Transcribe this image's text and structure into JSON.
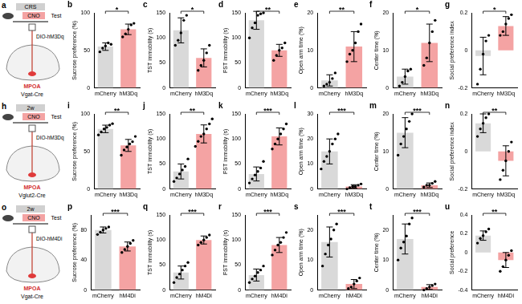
{
  "panels": [
    {
      "label": "a",
      "timeline": [
        "CRS",
        "CNO",
        "Test"
      ],
      "virus": "DIO-hM3Dq",
      "region": "MPOA",
      "line": "Vgat-Cre"
    },
    {
      "label": "h",
      "timeline": [
        "2w",
        "CNO",
        "Test"
      ],
      "virus": "DIO-hM3Dq",
      "region": "MPOA",
      "line": "Vglut2-Cre"
    },
    {
      "label": "o",
      "timeline": [
        "2w",
        "CNO",
        "Test"
      ],
      "virus": "DIO-hM4Di",
      "region": "MPOA",
      "line": "Vgat-Cre"
    }
  ],
  "chart_data": [
    {
      "panel": "b",
      "type": "bar",
      "categories": [
        "mCherry",
        "hM3Dq"
      ],
      "y_label": "Sucrose preference (%)",
      "values": [
        55,
        78
      ],
      "errors": [
        5,
        7
      ],
      "points": [
        [
          48,
          53,
          56,
          60,
          58
        ],
        [
          68,
          72,
          78,
          84,
          86
        ]
      ],
      "colors": [
        "#d9d9d9",
        "#f4a3a3"
      ],
      "ylim": [
        0,
        100
      ],
      "yticks": [
        0,
        50,
        100
      ],
      "significance": "*",
      "grid": false
    },
    {
      "panel": "c",
      "type": "bar",
      "categories": [
        "mCherry",
        "hM3Dq"
      ],
      "y_label": "TST immobility (s)",
      "values": [
        115,
        60
      ],
      "errors": [
        25,
        18
      ],
      "points": [
        [
          85,
          95,
          110,
          135,
          145
        ],
        [
          35,
          45,
          55,
          70,
          85
        ]
      ],
      "colors": [
        "#d9d9d9",
        "#f4a3a3"
      ],
      "ylim": [
        0,
        150
      ],
      "yticks": [
        0,
        50,
        100,
        150
      ],
      "significance": "*",
      "grid": false
    },
    {
      "panel": "d",
      "type": "bar",
      "categories": [
        "mCherry",
        "hM3Dq"
      ],
      "y_label": "FST immobility (s)",
      "values": [
        135,
        75
      ],
      "errors": [
        18,
        12
      ],
      "points": [
        [
          100,
          120,
          130,
          145,
          148,
          150
        ],
        [
          55,
          65,
          75,
          80,
          90
        ]
      ],
      "colors": [
        "#d9d9d9",
        "#f4a3a3"
      ],
      "ylim": [
        0,
        150
      ],
      "yticks": [
        0,
        50,
        100,
        150
      ],
      "significance": "**",
      "grid": false
    },
    {
      "panel": "e",
      "type": "bar",
      "categories": [
        "mCherry",
        "hM3Dq"
      ],
      "y_label": "Open arm time (%)",
      "values": [
        2,
        11
      ],
      "errors": [
        1.5,
        4
      ],
      "points": [
        [
          0.5,
          1,
          1.5,
          2.5,
          4
        ],
        [
          7,
          9,
          10,
          12,
          15,
          17
        ]
      ],
      "colors": [
        "#d9d9d9",
        "#f4a3a3"
      ],
      "ylim": [
        0,
        20
      ],
      "yticks": [
        0,
        10,
        20
      ],
      "significance": "**",
      "grid": false
    },
    {
      "panel": "f",
      "type": "bar",
      "categories": [
        "mCherry",
        "hM3Dq"
      ],
      "y_label": "Center time (%)",
      "values": [
        3,
        12
      ],
      "errors": [
        2,
        5
      ],
      "points": [
        [
          0.5,
          1.5,
          3,
          4.5,
          5
        ],
        [
          6,
          8,
          12,
          15,
          18
        ]
      ],
      "colors": [
        "#d9d9d9",
        "#f4a3a3"
      ],
      "ylim": [
        0,
        20
      ],
      "yticks": [
        0,
        10,
        20
      ],
      "significance": "*",
      "grid": false
    },
    {
      "panel": "g",
      "type": "bar",
      "categories": [
        "mCherry",
        "hM3Dq"
      ],
      "y_label": "Social preference index",
      "values": [
        -0.03,
        0.13
      ],
      "errors": [
        0.1,
        0.05
      ],
      "points": [
        [
          -0.18,
          -0.1,
          -0.02,
          0.05,
          0.08
        ],
        [
          0.08,
          0.1,
          0.14,
          0.17,
          0.19
        ]
      ],
      "colors": [
        "#d9d9d9",
        "#f4a3a3"
      ],
      "ylim": [
        -0.2,
        0.2
      ],
      "yticks": [
        -0.2,
        0,
        0.2
      ],
      "significance": "*",
      "grid": false
    },
    {
      "panel": "i",
      "type": "bar",
      "categories": [
        "mCherry",
        "hM3Dq"
      ],
      "y_label": "Sucrose preference (%)",
      "values": [
        80,
        58
      ],
      "errors": [
        5,
        8
      ],
      "points": [
        [
          72,
          76,
          80,
          82,
          85,
          87
        ],
        [
          45,
          52,
          56,
          60,
          63,
          70
        ]
      ],
      "colors": [
        "#d9d9d9",
        "#f4a3a3"
      ],
      "ylim": [
        0,
        100
      ],
      "yticks": [
        0,
        50,
        100
      ],
      "significance": "**",
      "grid": false
    },
    {
      "panel": "j",
      "type": "bar",
      "categories": [
        "mCherry",
        "hM3Dq"
      ],
      "y_label": "TST immobility (s)",
      "values": [
        35,
        110
      ],
      "errors": [
        15,
        18
      ],
      "points": [
        [
          15,
          22,
          30,
          38,
          45,
          60
        ],
        [
          85,
          95,
          105,
          110,
          120,
          130,
          140
        ]
      ],
      "colors": [
        "#d9d9d9",
        "#f4a3a3"
      ],
      "ylim": [
        0,
        150
      ],
      "yticks": [
        0,
        50,
        100,
        150
      ],
      "significance": "**",
      "grid": false
    },
    {
      "panel": "k",
      "type": "bar",
      "categories": [
        "mCherry",
        "hM3Dq"
      ],
      "y_label": "FST immobility (s)",
      "values": [
        30,
        105
      ],
      "errors": [
        14,
        17
      ],
      "points": [
        [
          12,
          20,
          28,
          35,
          42,
          55
        ],
        [
          80,
          90,
          100,
          110,
          120,
          130
        ]
      ],
      "colors": [
        "#d9d9d9",
        "#f4a3a3"
      ],
      "ylim": [
        0,
        150
      ],
      "yticks": [
        0,
        50,
        100,
        150
      ],
      "significance": "***",
      "grid": false
    },
    {
      "panel": "l",
      "type": "bar",
      "categories": [
        "mCherry",
        "hM3Dq"
      ],
      "y_label": "Open arm time (%)",
      "values": [
        15,
        1
      ],
      "errors": [
        5,
        0.7
      ],
      "points": [
        [
          8,
          11,
          13,
          15,
          18,
          20,
          22
        ],
        [
          0,
          0.5,
          1,
          1,
          1.5,
          2
        ]
      ],
      "colors": [
        "#d9d9d9",
        "#f4a3a3"
      ],
      "ylim": [
        0,
        30
      ],
      "yticks": [
        0,
        10,
        20,
        30
      ],
      "significance": "***",
      "grid": false
    },
    {
      "panel": "m",
      "type": "bar",
      "categories": [
        "mCherry",
        "hM3Dq"
      ],
      "y_label": "Center time (%)",
      "values": [
        15,
        1
      ],
      "errors": [
        4,
        0.6
      ],
      "points": [
        [
          9,
          12,
          14,
          16,
          18,
          20
        ],
        [
          0.5,
          1,
          1,
          1.5,
          2
        ]
      ],
      "colors": [
        "#d9d9d9",
        "#f4a3a3"
      ],
      "ylim": [
        0,
        20
      ],
      "yticks": [
        0,
        10,
        20
      ],
      "significance": "***",
      "grid": false
    },
    {
      "panel": "n",
      "type": "bar",
      "categories": [
        "mCherry",
        "hM3Dq"
      ],
      "y_label": "Social preference index",
      "values": [
        0.15,
        -0.05
      ],
      "errors": [
        0.05,
        0.08
      ],
      "points": [
        [
          0.08,
          0.12,
          0.15,
          0.18,
          0.2
        ],
        [
          -0.15,
          -0.1,
          -0.05,
          0,
          0.05
        ]
      ],
      "colors": [
        "#d9d9d9",
        "#f4a3a3"
      ],
      "ylim": [
        -0.2,
        0.2
      ],
      "yticks": [
        -0.2,
        0,
        0.2
      ],
      "significance": "**",
      "grid": false
    },
    {
      "panel": "p",
      "type": "bar",
      "categories": [
        "mCherry",
        "hM4Di"
      ],
      "y_label": "Sucrose preference (%)",
      "values": [
        80,
        58
      ],
      "errors": [
        4,
        6
      ],
      "points": [
        [
          74,
          77,
          80,
          82,
          84
        ],
        [
          50,
          54,
          58,
          62,
          66
        ]
      ],
      "colors": [
        "#d9d9d9",
        "#f4a3a3"
      ],
      "ylim": [
        0,
        100
      ],
      "yticks": [
        0,
        40,
        80
      ],
      "significance": "***",
      "grid": false
    },
    {
      "panel": "q",
      "type": "bar",
      "categories": [
        "mCherry",
        "hM4Di"
      ],
      "y_label": "TST immobility (s)",
      "values": [
        35,
        100
      ],
      "errors": [
        13,
        8
      ],
      "points": [
        [
          15,
          25,
          32,
          40,
          48,
          55
        ],
        [
          90,
          95,
          100,
          105,
          110
        ]
      ],
      "colors": [
        "#d9d9d9",
        "#f4a3a3"
      ],
      "ylim": [
        0,
        150
      ],
      "yticks": [
        0,
        50,
        100,
        150
      ],
      "significance": "***",
      "grid": false
    },
    {
      "panel": "r",
      "type": "bar",
      "categories": [
        "mCherry",
        "hM4Di"
      ],
      "y_label": "FST immobility (s)",
      "values": [
        30,
        90
      ],
      "errors": [
        12,
        15
      ],
      "points": [
        [
          15,
          22,
          28,
          35,
          40,
          48
        ],
        [
          70,
          80,
          90,
          95,
          105,
          115
        ]
      ],
      "colors": [
        "#d9d9d9",
        "#f4a3a3"
      ],
      "ylim": [
        0,
        150
      ],
      "yticks": [
        0,
        50,
        100,
        150
      ],
      "significance": "***",
      "grid": false
    },
    {
      "panel": "s",
      "type": "bar",
      "categories": [
        "mCherry",
        "hM4Di"
      ],
      "y_label": "Open arm time (%)",
      "values": [
        16,
        2
      ],
      "errors": [
        5,
        1.5
      ],
      "points": [
        [
          8,
          12,
          15,
          17,
          20,
          22
        ],
        [
          0.5,
          1,
          2,
          3,
          4
        ]
      ],
      "colors": [
        "#d9d9d9",
        "#f4a3a3"
      ],
      "ylim": [
        0,
        25
      ],
      "yticks": [
        0,
        10,
        20
      ],
      "significance": "***",
      "grid": false
    },
    {
      "panel": "t",
      "type": "bar",
      "categories": [
        "mCherry",
        "hM4Di"
      ],
      "y_label": "Center time (%)",
      "values": [
        17,
        1
      ],
      "errors": [
        5,
        0.8
      ],
      "points": [
        [
          10,
          14,
          16,
          18,
          22,
          24
        ],
        [
          0,
          0.5,
          1,
          1.5,
          2
        ]
      ],
      "colors": [
        "#d9d9d9",
        "#f4a3a3"
      ],
      "ylim": [
        0,
        25
      ],
      "yticks": [
        0,
        10,
        20
      ],
      "significance": "***",
      "grid": false
    },
    {
      "panel": "u",
      "type": "bar",
      "categories": [
        "mCherry",
        "hM4Di"
      ],
      "y_label": "Social preference",
      "values": [
        0.18,
        -0.08
      ],
      "errors": [
        0.05,
        0.08
      ],
      "points": [
        [
          0.1,
          0.15,
          0.18,
          0.22,
          0.25
        ],
        [
          -0.2,
          -0.15,
          -0.08,
          -0.03,
          0.02
        ]
      ],
      "colors": [
        "#d9d9d9",
        "#f4a3a3"
      ],
      "ylim": [
        -0.4,
        0.4
      ],
      "yticks": [
        -0.4,
        -0.2,
        0,
        0.2,
        0.4
      ],
      "significance": "**",
      "grid": false
    }
  ]
}
